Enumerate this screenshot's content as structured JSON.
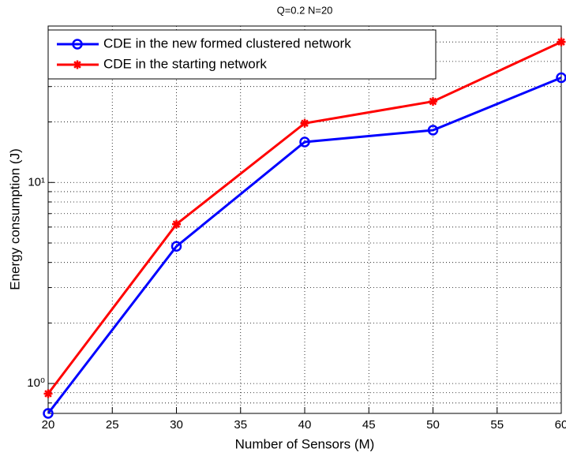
{
  "chart_data": {
    "type": "line",
    "title": "Q=0.2    N=20",
    "x_label": "Number of Sensors (M)",
    "y_label": "Energy consumption (J)",
    "x": [
      20,
      30,
      40,
      50,
      60
    ],
    "series": [
      {
        "name": "CDE in the new formed clustered network",
        "color": "#0000ff",
        "marker": "circle",
        "values": [
          0.71,
          4.81,
          15.9,
          18.2,
          33.2
        ]
      },
      {
        "name": "CDE in the starting network",
        "color": "#ff0000",
        "marker": "star",
        "values": [
          0.89,
          6.2,
          19.7,
          25.3,
          50
        ]
      }
    ],
    "xlim": [
      20,
      60
    ],
    "xticks": [
      20,
      25,
      30,
      35,
      40,
      45,
      50,
      55,
      60
    ],
    "ylim": [
      0.71,
      60
    ],
    "y_log": true,
    "yticks": [
      {
        "value": 1,
        "label": "10⁰"
      },
      {
        "value": 10,
        "label": "10¹"
      }
    ],
    "y_minor_ticks": [
      0.8,
      0.9,
      2,
      3,
      4,
      5,
      6,
      7,
      8,
      9,
      20,
      30,
      40,
      50,
      60
    ],
    "grid": true,
    "legend_position": "upper-left"
  }
}
